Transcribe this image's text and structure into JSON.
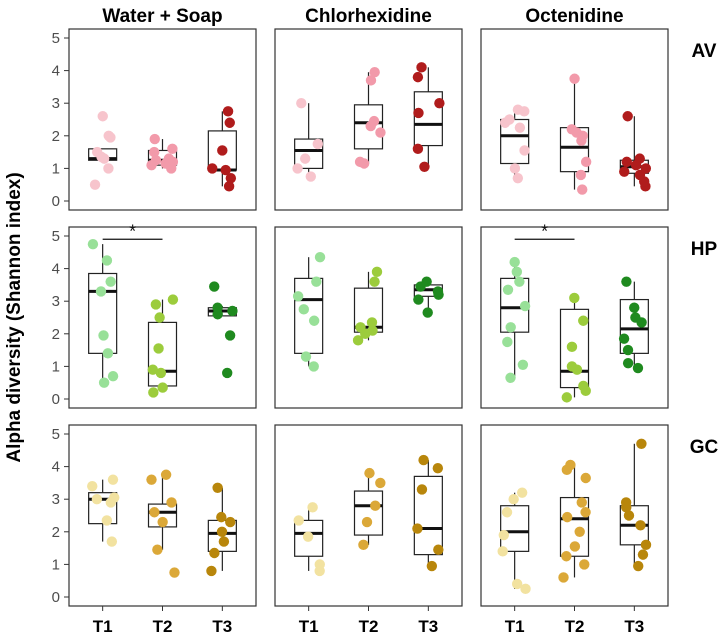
{
  "chart_data": {
    "type": "box",
    "ylabel": "Alpha diversity (Shannon index)",
    "columns": [
      "Water + Soap",
      "Chlorhexidine",
      "Octenidine"
    ],
    "rows": [
      "AV",
      "HP",
      "GC"
    ],
    "timepoints": [
      "T1",
      "T2",
      "T3"
    ],
    "ylim": [
      0,
      5
    ],
    "yticks": [
      0,
      1,
      2,
      3,
      4,
      5
    ],
    "grid": false,
    "colors": {
      "AV": [
        "#f7c4cc",
        "#f29aaa",
        "#b01c1c"
      ],
      "HP": [
        "#98e098",
        "#9ccc3c",
        "#1f8a1f"
      ],
      "GC": [
        "#f2e2a0",
        "#dba838",
        "#b8860b"
      ]
    },
    "significance": [
      {
        "row": "HP",
        "column": "Water + Soap",
        "from": "T1",
        "to": "T2",
        "y": 4.9,
        "label": "*"
      },
      {
        "row": "HP",
        "column": "Octenidine",
        "from": "T1",
        "to": "T2",
        "y": 4.9,
        "label": "*"
      }
    ],
    "panels": [
      {
        "row": "AV",
        "column": "Water + Soap",
        "groups": [
          {
            "t": "T1",
            "box": [
              1.25,
              1.3,
              1.6
            ],
            "whisker": [
              1.25,
              1.6
            ],
            "points": [
              0.5,
              1.0,
              1.3,
              1.35,
              1.5,
              1.95,
              2.0,
              2.6
            ]
          },
          {
            "t": "T2",
            "box": [
              1.1,
              1.25,
              1.55
            ],
            "whisker": [
              1.0,
              1.9
            ],
            "points": [
              1.0,
              1.05,
              1.1,
              1.15,
              1.2,
              1.25,
              1.3,
              1.5,
              1.6,
              1.9
            ]
          },
          {
            "t": "T3",
            "box": [
              0.95,
              0.95,
              2.15
            ],
            "whisker": [
              0.45,
              2.75
            ],
            "points": [
              0.45,
              0.7,
              0.95,
              1.0,
              1.55,
              2.4,
              2.75
            ]
          }
        ]
      },
      {
        "row": "AV",
        "column": "Chlorhexidine",
        "groups": [
          {
            "t": "T1",
            "box": [
              1.0,
              1.55,
              1.9
            ],
            "whisker": [
              0.75,
              3.0
            ],
            "points": [
              0.75,
              1.0,
              1.3,
              1.75,
              3.0
            ]
          },
          {
            "t": "T2",
            "box": [
              1.6,
              2.4,
              2.95
            ],
            "whisker": [
              1.15,
              3.95
            ],
            "points": [
              1.15,
              1.2,
              2.1,
              2.3,
              2.45,
              3.7,
              3.95
            ]
          },
          {
            "t": "T3",
            "box": [
              1.7,
              2.35,
              3.35
            ],
            "whisker": [
              1.05,
              4.1
            ],
            "points": [
              1.05,
              1.6,
              2.7,
              3.0,
              3.8,
              4.1
            ]
          }
        ]
      },
      {
        "row": "AV",
        "column": "Octenidine",
        "groups": [
          {
            "t": "T1",
            "box": [
              1.15,
              2.0,
              2.5
            ],
            "whisker": [
              0.7,
              2.75
            ],
            "points": [
              0.7,
              1.0,
              1.55,
              2.25,
              2.4,
              2.5,
              2.75,
              2.8
            ]
          },
          {
            "t": "T2",
            "box": [
              0.9,
              1.65,
              2.25
            ],
            "whisker": [
              0.35,
              3.75
            ],
            "points": [
              0.35,
              0.8,
              1.2,
              1.85,
              2.0,
              2.1,
              2.2,
              3.75
            ]
          },
          {
            "t": "T3",
            "box": [
              0.85,
              1.05,
              1.25
            ],
            "whisker": [
              0.45,
              2.6
            ],
            "points": [
              0.45,
              0.6,
              0.8,
              0.9,
              1.0,
              1.1,
              1.2,
              1.3,
              2.6
            ]
          }
        ]
      },
      {
        "row": "HP",
        "column": "Water + Soap",
        "groups": [
          {
            "t": "T1",
            "box": [
              1.4,
              3.3,
              3.85
            ],
            "whisker": [
              0.5,
              4.75
            ],
            "points": [
              0.5,
              0.7,
              1.4,
              1.95,
              3.3,
              3.6,
              4.25,
              4.75
            ]
          },
          {
            "t": "T2",
            "box": [
              0.4,
              0.85,
              2.35
            ],
            "whisker": [
              0.2,
              3.05
            ],
            "points": [
              0.2,
              0.35,
              0.8,
              0.9,
              1.55,
              2.5,
              2.9,
              3.05
            ]
          },
          {
            "t": "T3",
            "box": [
              2.55,
              2.7,
              2.8
            ],
            "whisker": [
              2.55,
              2.85
            ],
            "points": [
              0.8,
              1.95,
              2.6,
              2.7,
              2.8,
              3.45
            ]
          }
        ]
      },
      {
        "row": "HP",
        "column": "Chlorhexidine",
        "groups": [
          {
            "t": "T1",
            "box": [
              1.4,
              3.05,
              3.7
            ],
            "whisker": [
              1.0,
              4.35
            ],
            "points": [
              1.0,
              1.3,
              2.4,
              2.75,
              3.15,
              3.6,
              4.35
            ]
          },
          {
            "t": "T2",
            "box": [
              2.05,
              2.2,
              3.4
            ],
            "whisker": [
              1.8,
              3.9
            ],
            "points": [
              1.8,
              2.0,
              2.1,
              2.2,
              2.35,
              3.6,
              3.9
            ]
          },
          {
            "t": "T3",
            "box": [
              3.15,
              3.35,
              3.5
            ],
            "whisker": [
              2.65,
              3.6
            ],
            "points": [
              2.65,
              3.05,
              3.2,
              3.3,
              3.45,
              3.6
            ]
          }
        ]
      },
      {
        "row": "HP",
        "column": "Octenidine",
        "groups": [
          {
            "t": "T1",
            "box": [
              2.05,
              2.8,
              3.7
            ],
            "whisker": [
              0.65,
              4.2
            ],
            "points": [
              0.65,
              1.05,
              1.75,
              2.2,
              2.85,
              3.35,
              3.6,
              3.9,
              4.2
            ]
          },
          {
            "t": "T2",
            "box": [
              0.35,
              0.85,
              2.75
            ],
            "whisker": [
              0.05,
              3.1
            ],
            "points": [
              0.05,
              0.25,
              0.4,
              0.9,
              1.0,
              1.6,
              2.4,
              3.1
            ]
          },
          {
            "t": "T3",
            "box": [
              1.4,
              2.15,
              3.05
            ],
            "whisker": [
              0.95,
              3.6
            ],
            "points": [
              0.95,
              1.1,
              1.5,
              1.85,
              2.35,
              2.5,
              2.8,
              3.6
            ]
          }
        ]
      },
      {
        "row": "GC",
        "column": "Water + Soap",
        "groups": [
          {
            "t": "T1",
            "box": [
              2.25,
              3.0,
              3.2
            ],
            "whisker": [
              1.7,
              3.6
            ],
            "points": [
              1.7,
              2.35,
              2.9,
              3.0,
              3.05,
              3.4,
              3.6
            ]
          },
          {
            "t": "T2",
            "box": [
              2.15,
              2.6,
              2.85
            ],
            "whisker": [
              1.45,
              3.75
            ],
            "points": [
              0.75,
              1.45,
              2.3,
              2.6,
              2.9,
              3.6,
              3.75
            ]
          },
          {
            "t": "T3",
            "box": [
              1.4,
              1.95,
              2.35
            ],
            "whisker": [
              0.8,
              3.35
            ],
            "points": [
              0.8,
              1.35,
              1.7,
              2.0,
              2.3,
              2.45,
              3.35
            ]
          }
        ]
      },
      {
        "row": "GC",
        "column": "Chlorhexidine",
        "groups": [
          {
            "t": "T1",
            "box": [
              1.25,
              1.95,
              2.35
            ],
            "whisker": [
              0.8,
              2.75
            ],
            "points": [
              0.8,
              1.0,
              1.85,
              2.35,
              2.75
            ]
          },
          {
            "t": "T2",
            "box": [
              1.9,
              2.8,
              3.25
            ],
            "whisker": [
              1.6,
              3.8
            ],
            "points": [
              1.6,
              2.3,
              2.8,
              3.5,
              3.8
            ]
          },
          {
            "t": "T3",
            "box": [
              1.3,
              2.1,
              3.7
            ],
            "whisker": [
              0.95,
              4.2
            ],
            "points": [
              0.95,
              1.45,
              2.1,
              3.3,
              3.95,
              4.2
            ]
          }
        ]
      },
      {
        "row": "GC",
        "column": "Octenidine",
        "groups": [
          {
            "t": "T1",
            "box": [
              1.4,
              2.0,
              2.8
            ],
            "whisker": [
              0.25,
              3.2
            ],
            "points": [
              0.25,
              0.4,
              1.4,
              1.9,
              2.6,
              3.0,
              3.2
            ]
          },
          {
            "t": "T2",
            "box": [
              1.25,
              2.4,
              3.05
            ],
            "whisker": [
              0.6,
              4.05
            ],
            "points": [
              0.6,
              1.0,
              1.25,
              1.55,
              2.0,
              2.45,
              2.6,
              2.9,
              3.65,
              3.9,
              4.05
            ]
          },
          {
            "t": "T3",
            "box": [
              1.6,
              2.2,
              2.8
            ],
            "whisker": [
              0.95,
              4.7
            ],
            "points": [
              0.95,
              1.3,
              1.6,
              2.2,
              2.5,
              2.75,
              2.9,
              4.7
            ]
          }
        ]
      }
    ]
  }
}
